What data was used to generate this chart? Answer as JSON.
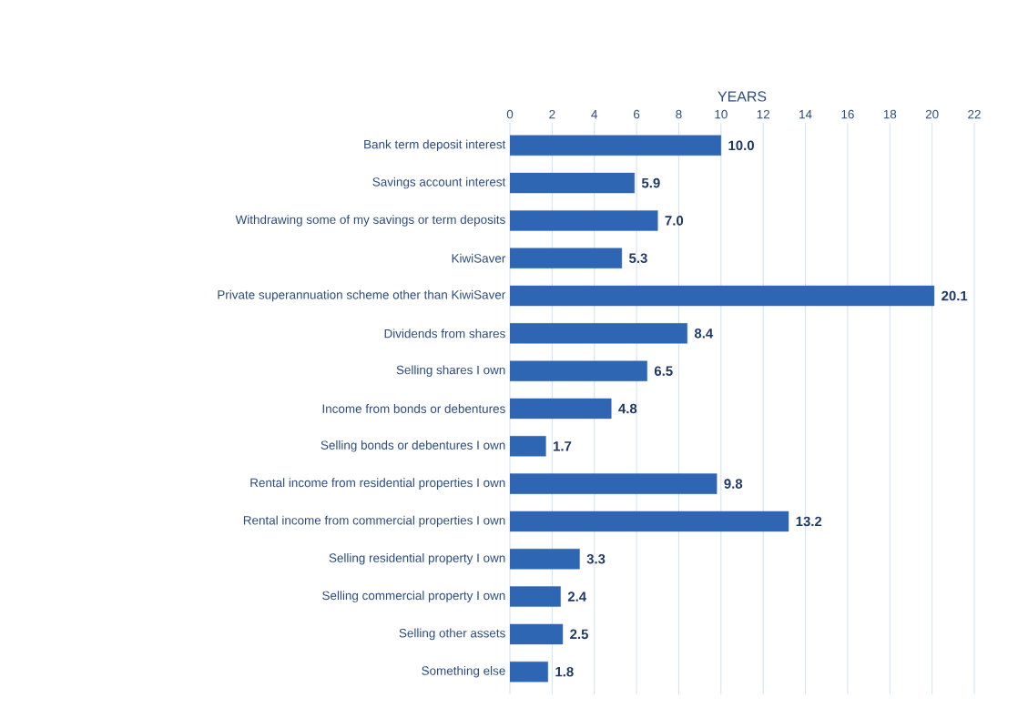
{
  "chart_data": {
    "type": "bar",
    "orientation": "horizontal",
    "xlabel": "YEARS",
    "categories": [
      "Bank term deposit interest",
      "Savings account interest",
      "Withdrawing some of my savings or term deposits",
      "KiwiSaver",
      "Private superannuation scheme other than KiwiSaver",
      "Dividends from shares",
      "Selling shares I own",
      "Income from bonds or debentures",
      "Selling bonds or debentures I own",
      "Rental income from residential properties I own",
      "Rental income from commercial properties I own",
      "Selling residential property I own",
      "Selling commercial property I own",
      "Selling other assets",
      "Something else"
    ],
    "values": [
      10.0,
      5.9,
      7.0,
      5.3,
      20.1,
      8.4,
      6.5,
      4.8,
      1.7,
      9.8,
      13.2,
      3.3,
      2.4,
      2.5,
      1.8
    ],
    "value_labels": [
      "10.0",
      "5.9",
      "7.0",
      "5.3",
      "20.1",
      "8.4",
      "6.5",
      "4.8",
      "1.7",
      "9.8",
      "13.2",
      "3.3",
      "2.4",
      "2.5",
      "1.8"
    ],
    "color": "#2f66b3",
    "xlim": [
      0,
      22
    ],
    "xticks": [
      0,
      2,
      4,
      6,
      8,
      10,
      12,
      14,
      16,
      18,
      20,
      22
    ],
    "grid": "x"
  }
}
